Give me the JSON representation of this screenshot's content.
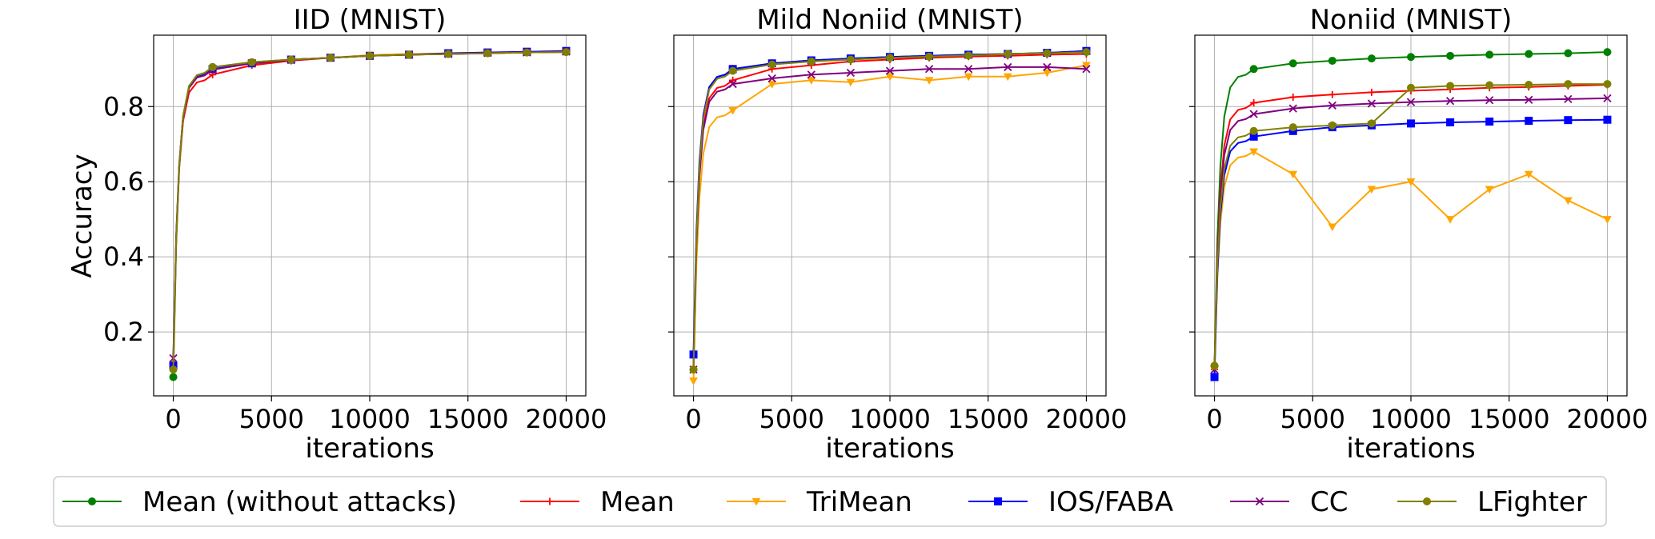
{
  "figure": {
    "ylabel": "Accuracy",
    "xlabel": "iterations"
  },
  "legend": {
    "items": [
      {
        "label": "Mean (without attacks)",
        "color": "#008000",
        "marker": "circle"
      },
      {
        "label": "Mean",
        "color": "#ff0000",
        "marker": "plus"
      },
      {
        "label": "TriMean",
        "color": "#ffa500",
        "marker": "triangle-down"
      },
      {
        "label": "IOS/FABA",
        "color": "#0000ff",
        "marker": "square"
      },
      {
        "label": "CC",
        "color": "#800080",
        "marker": "x"
      },
      {
        "label": "LFighter",
        "color": "#808000",
        "marker": "circle"
      }
    ]
  },
  "chart_data": [
    {
      "type": "line",
      "title": "IID (MNIST)",
      "xlabel": "iterations",
      "ylabel": "Accuracy",
      "xlim": [
        -1000,
        21000
      ],
      "ylim": [
        0.03,
        0.99
      ],
      "xticks": [
        0,
        5000,
        10000,
        15000,
        20000
      ],
      "yticks": [
        0.2,
        0.4,
        0.6,
        0.8
      ],
      "grid": true,
      "x": [
        0,
        2000,
        4000,
        6000,
        8000,
        10000,
        12000,
        14000,
        16000,
        18000,
        20000
      ],
      "series": [
        {
          "name": "Mean (without attacks)",
          "values": [
            0.08,
            0.905,
            0.918,
            0.925,
            0.93,
            0.935,
            0.938,
            0.94,
            0.942,
            0.944,
            0.946
          ]
        },
        {
          "name": "Mean",
          "values": [
            0.12,
            0.885,
            0.91,
            0.922,
            0.93,
            0.935,
            0.938,
            0.94,
            0.942,
            0.944,
            0.945
          ]
        },
        {
          "name": "TriMean",
          "values": [
            0.1,
            0.9,
            0.915,
            0.925,
            0.93,
            0.937,
            0.94,
            0.942,
            0.944,
            0.945,
            0.945
          ]
        },
        {
          "name": "IOS/FABA",
          "values": [
            0.11,
            0.9,
            0.915,
            0.925,
            0.93,
            0.935,
            0.938,
            0.942,
            0.944,
            0.946,
            0.948
          ]
        },
        {
          "name": "CC",
          "values": [
            0.13,
            0.898,
            0.915,
            0.924,
            0.93,
            0.935,
            0.938,
            0.94,
            0.943,
            0.944,
            0.946
          ]
        },
        {
          "name": "LFighter",
          "values": [
            0.1,
            0.905,
            0.918,
            0.925,
            0.93,
            0.935,
            0.938,
            0.94,
            0.942,
            0.944,
            0.945
          ]
        }
      ]
    },
    {
      "type": "line",
      "title": "Mild Noniid (MNIST)",
      "xlabel": "iterations",
      "ylabel": "",
      "xlim": [
        -1000,
        21000
      ],
      "ylim": [
        0.03,
        0.99
      ],
      "xticks": [
        0,
        5000,
        10000,
        15000,
        20000
      ],
      "yticks": [
        0.2,
        0.4,
        0.6,
        0.8
      ],
      "grid": true,
      "x": [
        0,
        2000,
        4000,
        6000,
        8000,
        10000,
        12000,
        14000,
        16000,
        18000,
        20000
      ],
      "series": [
        {
          "name": "Mean (without attacks)",
          "values": [
            0.1,
            0.9,
            0.915,
            0.923,
            0.928,
            0.932,
            0.935,
            0.938,
            0.94,
            0.943,
            0.948
          ]
        },
        {
          "name": "Mean",
          "values": [
            0.1,
            0.87,
            0.9,
            0.91,
            0.92,
            0.925,
            0.93,
            0.933,
            0.935,
            0.938,
            0.94
          ]
        },
        {
          "name": "TriMean",
          "values": [
            0.07,
            0.79,
            0.86,
            0.87,
            0.865,
            0.88,
            0.87,
            0.88,
            0.88,
            0.89,
            0.91
          ]
        },
        {
          "name": "IOS/FABA",
          "values": [
            0.14,
            0.9,
            0.915,
            0.923,
            0.928,
            0.932,
            0.935,
            0.938,
            0.94,
            0.943,
            0.948
          ]
        },
        {
          "name": "CC",
          "values": [
            0.1,
            0.86,
            0.875,
            0.885,
            0.89,
            0.895,
            0.9,
            0.9,
            0.905,
            0.905,
            0.9
          ]
        },
        {
          "name": "LFighter",
          "values": [
            0.1,
            0.895,
            0.912,
            0.92,
            0.925,
            0.93,
            0.933,
            0.936,
            0.94,
            0.942,
            0.945
          ]
        }
      ]
    },
    {
      "type": "line",
      "title": "Noniid (MNIST)",
      "xlabel": "iterations",
      "ylabel": "",
      "xlim": [
        -1000,
        21000
      ],
      "ylim": [
        0.03,
        0.99
      ],
      "xticks": [
        0,
        5000,
        10000,
        15000,
        20000
      ],
      "yticks": [
        0.2,
        0.4,
        0.6,
        0.8
      ],
      "grid": true,
      "x": [
        0,
        2000,
        4000,
        6000,
        8000,
        10000,
        12000,
        14000,
        16000,
        18000,
        20000
      ],
      "series": [
        {
          "name": "Mean (without attacks)",
          "values": [
            0.11,
            0.9,
            0.915,
            0.922,
            0.928,
            0.932,
            0.935,
            0.938,
            0.94,
            0.942,
            0.945
          ]
        },
        {
          "name": "Mean",
          "values": [
            0.1,
            0.81,
            0.825,
            0.832,
            0.838,
            0.842,
            0.846,
            0.85,
            0.852,
            0.855,
            0.858
          ]
        },
        {
          "name": "TriMean",
          "values": [
            0.1,
            0.68,
            0.62,
            0.48,
            0.58,
            0.6,
            0.5,
            0.58,
            0.62,
            0.55,
            0.5
          ]
        },
        {
          "name": "IOS/FABA",
          "values": [
            0.08,
            0.72,
            0.735,
            0.745,
            0.75,
            0.755,
            0.758,
            0.76,
            0.762,
            0.764,
            0.765
          ]
        },
        {
          "name": "CC",
          "values": [
            0.1,
            0.78,
            0.795,
            0.803,
            0.808,
            0.812,
            0.815,
            0.817,
            0.818,
            0.82,
            0.822
          ]
        },
        {
          "name": "LFighter",
          "values": [
            0.11,
            0.735,
            0.745,
            0.75,
            0.755,
            0.85,
            0.855,
            0.857,
            0.858,
            0.86,
            0.86
          ]
        }
      ]
    }
  ]
}
